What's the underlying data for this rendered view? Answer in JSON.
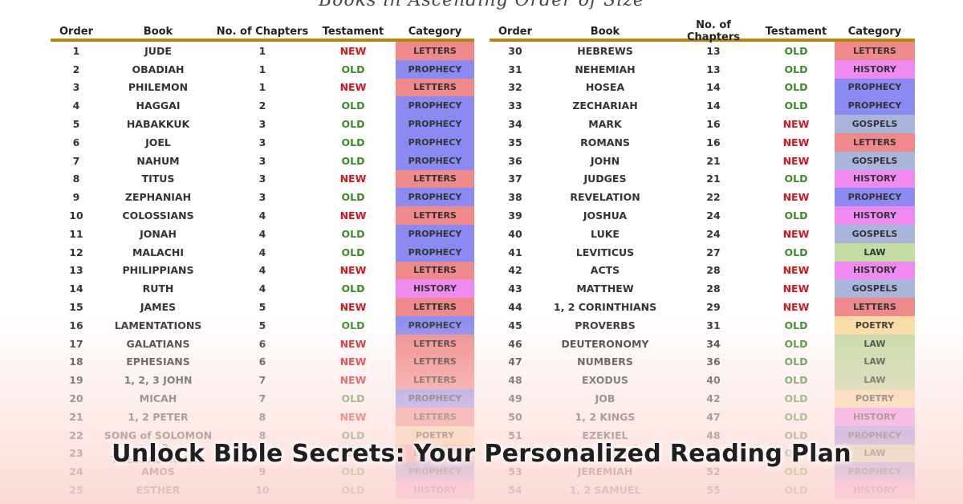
{
  "page_title": "Books in Ascending Order of Size",
  "headline": "Unlock Bible Secrets: Your Personalized Reading Plan",
  "columns": {
    "order": "Order",
    "book": "Book",
    "chapters": "No. of Chapters",
    "testament": "Testament",
    "category": "Category"
  },
  "category_colors": {
    "LETTERS": "#f08a8a",
    "PROPHECY": "#8a8af2",
    "HISTORY": "#f08af0",
    "GOSPELS": "#a9b6dc",
    "LAW": "#c2dca2",
    "POETRY": "#f8dca2"
  },
  "left_rows": [
    {
      "order": "1",
      "book": "JUDE",
      "chapters": "1",
      "testament": "NEW",
      "category": "LETTERS"
    },
    {
      "order": "2",
      "book": "OBADIAH",
      "chapters": "1",
      "testament": "OLD",
      "category": "PROPHECY"
    },
    {
      "order": "3",
      "book": "PHILEMON",
      "chapters": "1",
      "testament": "NEW",
      "category": "LETTERS"
    },
    {
      "order": "4",
      "book": "HAGGAI",
      "chapters": "2",
      "testament": "OLD",
      "category": "PROPHECY"
    },
    {
      "order": "5",
      "book": "HABAKKUK",
      "chapters": "3",
      "testament": "OLD",
      "category": "PROPHECY"
    },
    {
      "order": "6",
      "book": "JOEL",
      "chapters": "3",
      "testament": "OLD",
      "category": "PROPHECY"
    },
    {
      "order": "7",
      "book": "NAHUM",
      "chapters": "3",
      "testament": "OLD",
      "category": "PROPHECY"
    },
    {
      "order": "8",
      "book": "TITUS",
      "chapters": "3",
      "testament": "NEW",
      "category": "LETTERS"
    },
    {
      "order": "9",
      "book": "ZEPHANIAH",
      "chapters": "3",
      "testament": "OLD",
      "category": "PROPHECY"
    },
    {
      "order": "10",
      "book": "COLOSSIANS",
      "chapters": "4",
      "testament": "NEW",
      "category": "LETTERS"
    },
    {
      "order": "11",
      "book": "JONAH",
      "chapters": "4",
      "testament": "OLD",
      "category": "PROPHECY"
    },
    {
      "order": "12",
      "book": "MALACHI",
      "chapters": "4",
      "testament": "OLD",
      "category": "PROPHECY"
    },
    {
      "order": "13",
      "book": "PHILIPPIANS",
      "chapters": "4",
      "testament": "NEW",
      "category": "LETTERS"
    },
    {
      "order": "14",
      "book": "RUTH",
      "chapters": "4",
      "testament": "OLD",
      "category": "HISTORY"
    },
    {
      "order": "15",
      "book": "JAMES",
      "chapters": "5",
      "testament": "NEW",
      "category": "LETTERS"
    },
    {
      "order": "16",
      "book": "LAMENTATIONS",
      "chapters": "5",
      "testament": "OLD",
      "category": "PROPHECY"
    },
    {
      "order": "17",
      "book": "GALATIANS",
      "chapters": "6",
      "testament": "NEW",
      "category": "LETTERS"
    },
    {
      "order": "18",
      "book": "EPHESIANS",
      "chapters": "6",
      "testament": "NEW",
      "category": "LETTERS"
    },
    {
      "order": "19",
      "book": "1, 2, 3 JOHN",
      "chapters": "7",
      "testament": "NEW",
      "category": "LETTERS"
    },
    {
      "order": "20",
      "book": "MICAH",
      "chapters": "7",
      "testament": "OLD",
      "category": "PROPHECY"
    },
    {
      "order": "21",
      "book": "1, 2 PETER",
      "chapters": "8",
      "testament": "NEW",
      "category": "LETTERS"
    },
    {
      "order": "22",
      "book": "SONG of SOLOMON",
      "chapters": "8",
      "testament": "OLD",
      "category": "POETRY"
    },
    {
      "order": "23",
      "book": "1, 2 THESSALONIANS",
      "chapters": "8",
      "testament": "NEW",
      "category": "LETTERS"
    },
    {
      "order": "24",
      "book": "AMOS",
      "chapters": "9",
      "testament": "OLD",
      "category": "PROPHECY"
    },
    {
      "order": "25",
      "book": "ESTHER",
      "chapters": "10",
      "testament": "OLD",
      "category": "HISTORY"
    }
  ],
  "right_rows": [
    {
      "order": "30",
      "book": "HEBREWS",
      "chapters": "13",
      "testament": "OLD",
      "category": "LETTERS"
    },
    {
      "order": "31",
      "book": "NEHEMIAH",
      "chapters": "13",
      "testament": "OLD",
      "category": "HISTORY"
    },
    {
      "order": "32",
      "book": "HOSEA",
      "chapters": "14",
      "testament": "OLD",
      "category": "PROPHECY"
    },
    {
      "order": "33",
      "book": "ZECHARIAH",
      "chapters": "14",
      "testament": "OLD",
      "category": "PROPHECY"
    },
    {
      "order": "34",
      "book": "MARK",
      "chapters": "16",
      "testament": "NEW",
      "category": "GOSPELS"
    },
    {
      "order": "35",
      "book": "ROMANS",
      "chapters": "16",
      "testament": "NEW",
      "category": "LETTERS"
    },
    {
      "order": "36",
      "book": "JOHN",
      "chapters": "21",
      "testament": "NEW",
      "category": "GOSPELS"
    },
    {
      "order": "37",
      "book": "JUDGES",
      "chapters": "21",
      "testament": "OLD",
      "category": "HISTORY"
    },
    {
      "order": "38",
      "book": "REVELATION",
      "chapters": "22",
      "testament": "NEW",
      "category": "PROPHECY"
    },
    {
      "order": "39",
      "book": "JOSHUA",
      "chapters": "24",
      "testament": "OLD",
      "category": "HISTORY"
    },
    {
      "order": "40",
      "book": "LUKE",
      "chapters": "24",
      "testament": "NEW",
      "category": "GOSPELS"
    },
    {
      "order": "41",
      "book": "LEVITICUS",
      "chapters": "27",
      "testament": "OLD",
      "category": "LAW"
    },
    {
      "order": "42",
      "book": "ACTS",
      "chapters": "28",
      "testament": "NEW",
      "category": "HISTORY"
    },
    {
      "order": "43",
      "book": "MATTHEW",
      "chapters": "28",
      "testament": "NEW",
      "category": "GOSPELS"
    },
    {
      "order": "44",
      "book": "1, 2 CORINTHIANS",
      "chapters": "29",
      "testament": "NEW",
      "category": "LETTERS"
    },
    {
      "order": "45",
      "book": "PROVERBS",
      "chapters": "31",
      "testament": "OLD",
      "category": "POETRY"
    },
    {
      "order": "46",
      "book": "DEUTERONOMY",
      "chapters": "34",
      "testament": "OLD",
      "category": "LAW"
    },
    {
      "order": "47",
      "book": "NUMBERS",
      "chapters": "36",
      "testament": "OLD",
      "category": "LAW"
    },
    {
      "order": "48",
      "book": "EXODUS",
      "chapters": "40",
      "testament": "OLD",
      "category": "LAW"
    },
    {
      "order": "49",
      "book": "JOB",
      "chapters": "42",
      "testament": "OLD",
      "category": "POETRY"
    },
    {
      "order": "50",
      "book": "1, 2 KINGS",
      "chapters": "47",
      "testament": "OLD",
      "category": "HISTORY"
    },
    {
      "order": "51",
      "book": "EZEKIEL",
      "chapters": "48",
      "testament": "OLD",
      "category": "PROPHECY"
    },
    {
      "order": "52",
      "book": "GENESIS",
      "chapters": "50",
      "testament": "OLD",
      "category": "LAW"
    },
    {
      "order": "53",
      "book": "JEREMIAH",
      "chapters": "52",
      "testament": "OLD",
      "category": "PROPHECY"
    },
    {
      "order": "54",
      "book": "1, 2 SAMUEL",
      "chapters": "55",
      "testament": "OLD",
      "category": "HISTORY"
    }
  ]
}
